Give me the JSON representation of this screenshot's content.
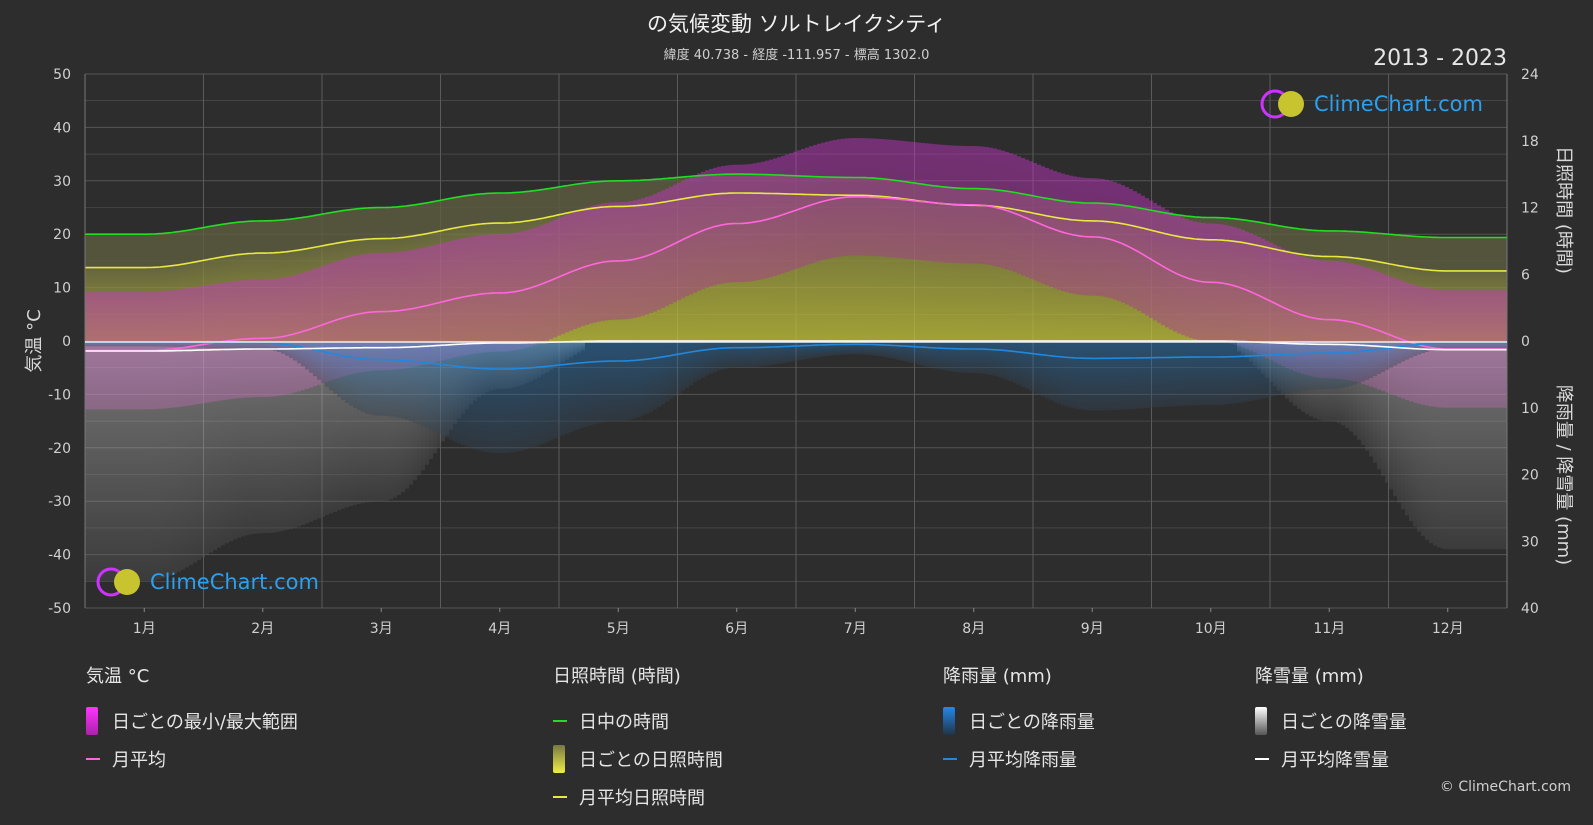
{
  "header": {
    "title": "の気候変動 ソルトレイクシティ",
    "subtitle": "緯度 40.738 - 経度 -111.957 - 標高 1302.0",
    "years": "2013 - 2023"
  },
  "logo": {
    "text": "ClimeChart.com"
  },
  "copyright": "© ClimeChart.com",
  "colors": {
    "background": "#2d2d2d",
    "daylight": "#22dd22",
    "sunshine_avg": "#e8e840",
    "temp_avg": "#ff66dd",
    "rain_avg": "#2288dd",
    "snow_avg": "#ffffff",
    "temp_range": "#dd22dd",
    "sunshine_daily": "#bbbb33",
    "rain_daily": "#2266aa",
    "snow_daily": "#888888"
  },
  "legend": {
    "temp": {
      "header": "気温 °C",
      "range": "日ごとの最小/最大範囲",
      "avg": "月平均"
    },
    "sun": {
      "header": "日照時間 (時間)",
      "daylight": "日中の時間",
      "daily": "日ごとの日照時間",
      "avg": "月平均日照時間"
    },
    "rain": {
      "header": "降雨量 (mm)",
      "daily": "日ごとの降雨量",
      "avg": "月平均降雨量"
    },
    "snow": {
      "header": "降雪量 (mm)",
      "daily": "日ごとの降雪量",
      "avg": "月平均降雪量"
    }
  },
  "chart_data": {
    "type": "line",
    "categories": [
      "1月",
      "2月",
      "3月",
      "4月",
      "5月",
      "6月",
      "7月",
      "8月",
      "9月",
      "10月",
      "11月",
      "12月"
    ],
    "y_left": {
      "label": "気温 °C",
      "range": [
        -50,
        50
      ],
      "ticks": [
        50,
        40,
        30,
        20,
        10,
        0,
        -10,
        -20,
        -30,
        -40,
        -50
      ]
    },
    "y_right_top": {
      "label": "日照時間 (時間)",
      "range": [
        0,
        24
      ],
      "ticks": [
        24,
        18,
        12,
        6,
        0
      ]
    },
    "y_right_bottom": {
      "label": "降雨量 / 降雪量 (mm)",
      "range": [
        0,
        40
      ],
      "ticks": [
        10,
        20,
        30,
        40
      ]
    },
    "series": [
      {
        "name": "日中の時間",
        "axis": "sunshine_hours",
        "values": [
          9.6,
          10.8,
          12.0,
          13.3,
          14.4,
          15.0,
          14.7,
          13.7,
          12.4,
          11.1,
          9.9,
          9.3
        ]
      },
      {
        "name": "月平均日照時間",
        "axis": "sunshine_hours",
        "values": [
          6.6,
          7.9,
          9.2,
          10.6,
          12.1,
          13.3,
          13.1,
          12.2,
          10.8,
          9.1,
          7.6,
          6.3
        ]
      },
      {
        "name": "月平均",
        "axis": "temperature_c",
        "values": [
          -1.8,
          0.5,
          5.5,
          9.0,
          15.0,
          22.0,
          27.0,
          25.5,
          19.5,
          11.0,
          4.0,
          -1.5
        ]
      },
      {
        "name": "月平均降雨量",
        "axis": "precip_mm",
        "values": [
          0.2,
          0.3,
          2.8,
          4.2,
          3.0,
          1.0,
          0.5,
          1.2,
          2.6,
          2.4,
          1.8,
          0.3
        ]
      },
      {
        "name": "月平均降雪量",
        "axis": "precip_mm",
        "values": [
          1.5,
          1.2,
          1.0,
          0.3,
          0.0,
          0.0,
          0.0,
          0.0,
          0.0,
          0.0,
          0.5,
          1.3
        ]
      }
    ],
    "grid": true
  }
}
